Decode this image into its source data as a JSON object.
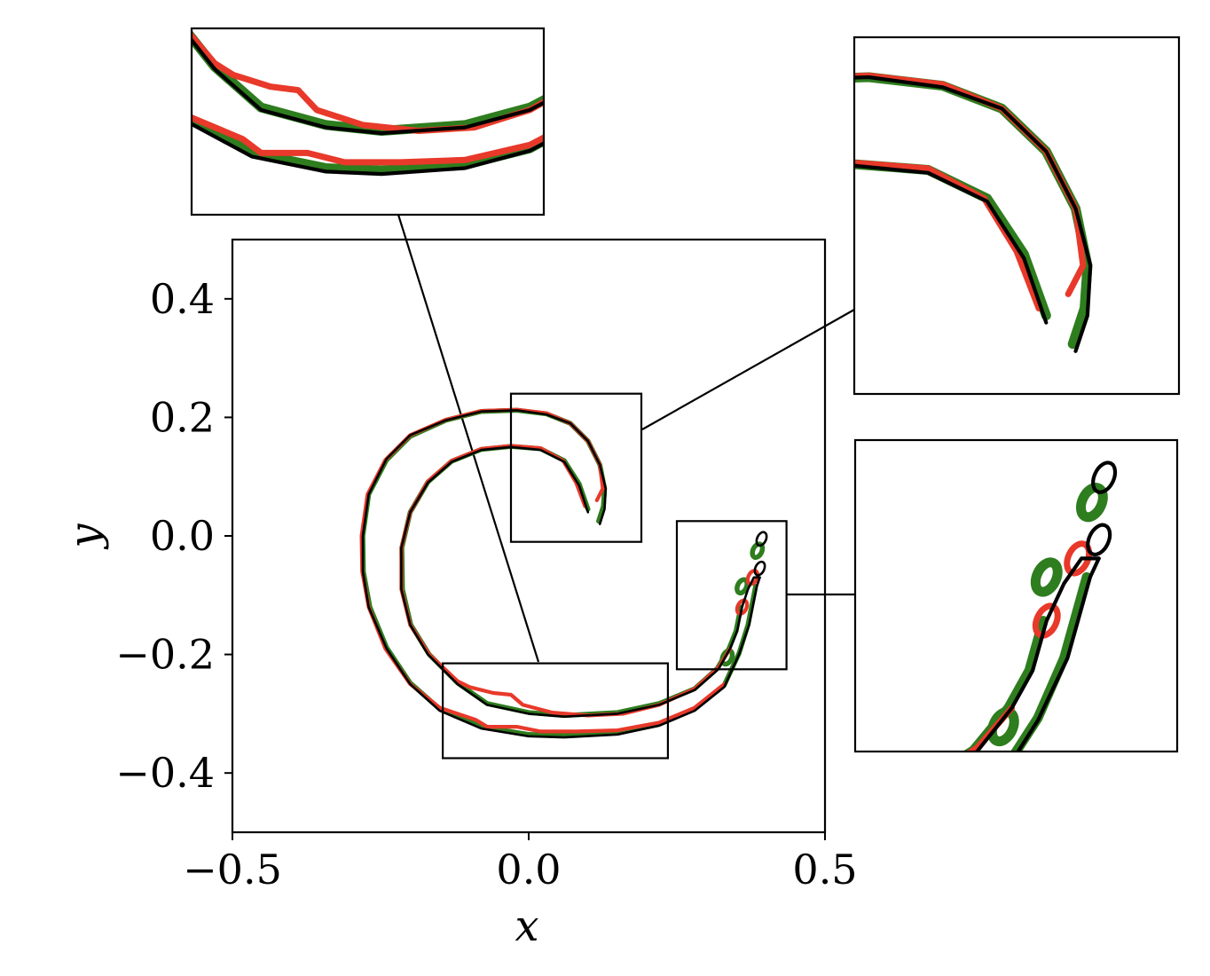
{
  "chart_data": {
    "type": "line",
    "title": "",
    "xlabel": "x",
    "ylabel": "y",
    "xlim": [
      -0.5,
      0.5
    ],
    "ylim": [
      -0.5,
      0.5
    ],
    "xticks": [
      -0.5,
      0.0,
      0.5
    ],
    "yticks": [
      -0.4,
      -0.2,
      0.0,
      0.2,
      0.4
    ],
    "xtick_labels": [
      "−0.5",
      "0.0",
      "0.5"
    ],
    "ytick_labels": [
      "−0.4",
      "−0.2",
      "0.0",
      "0.2",
      "0.4"
    ],
    "grid": false,
    "legend": "none",
    "series_colors": [
      "#000000",
      "#2e7d1e",
      "#e8392a"
    ],
    "series": [
      {
        "color": "#000000",
        "outer": [
          [
            0.12,
            0.02
          ],
          [
            0.128,
            0.045
          ],
          [
            0.13,
            0.08
          ],
          [
            0.12,
            0.12
          ],
          [
            0.1,
            0.16
          ],
          [
            0.07,
            0.19
          ],
          [
            0.03,
            0.205
          ],
          [
            -0.02,
            0.212
          ],
          [
            -0.08,
            0.21
          ],
          [
            -0.14,
            0.195
          ],
          [
            -0.2,
            0.17
          ],
          [
            -0.24,
            0.13
          ],
          [
            -0.27,
            0.07
          ],
          [
            -0.28,
            0.0
          ],
          [
            -0.28,
            -0.06
          ],
          [
            -0.27,
            -0.12
          ],
          [
            -0.24,
            -0.19
          ],
          [
            -0.2,
            -0.25
          ],
          [
            -0.15,
            -0.295
          ],
          [
            -0.08,
            -0.325
          ],
          [
            0.0,
            -0.338
          ],
          [
            0.06,
            -0.34
          ],
          [
            0.15,
            -0.335
          ],
          [
            0.22,
            -0.32
          ],
          [
            0.28,
            -0.295
          ],
          [
            0.33,
            -0.255
          ],
          [
            0.355,
            -0.2
          ],
          [
            0.372,
            -0.15
          ],
          [
            0.38,
            -0.11
          ],
          [
            0.385,
            -0.085
          ],
          [
            0.39,
            -0.07
          ]
        ],
        "inner": [
          [
            0.1,
            0.04
          ],
          [
            0.085,
            0.085
          ],
          [
            0.06,
            0.125
          ],
          [
            0.02,
            0.145
          ],
          [
            -0.03,
            0.15
          ],
          [
            -0.08,
            0.145
          ],
          [
            -0.13,
            0.125
          ],
          [
            -0.17,
            0.09
          ],
          [
            -0.2,
            0.04
          ],
          [
            -0.215,
            -0.02
          ],
          [
            -0.215,
            -0.09
          ],
          [
            -0.2,
            -0.15
          ],
          [
            -0.17,
            -0.2
          ],
          [
            -0.12,
            -0.25
          ],
          [
            -0.07,
            -0.285
          ],
          [
            0.0,
            -0.3
          ],
          [
            0.06,
            -0.305
          ],
          [
            0.15,
            -0.3
          ],
          [
            0.22,
            -0.285
          ],
          [
            0.28,
            -0.26
          ],
          [
            0.32,
            -0.225
          ],
          [
            0.34,
            -0.19
          ],
          [
            0.352,
            -0.16
          ],
          [
            0.36,
            -0.12
          ],
          [
            0.37,
            -0.09
          ],
          [
            0.38,
            -0.07
          ],
          [
            0.39,
            -0.07
          ]
        ],
        "blobs": [
          [
            0.39,
            -0.055
          ],
          [
            0.393,
            -0.005
          ]
        ]
      },
      {
        "color": "#2e7d1e",
        "outer": [
          [
            0.118,
            0.025
          ],
          [
            0.126,
            0.05
          ],
          [
            0.128,
            0.08
          ],
          [
            0.12,
            0.12
          ],
          [
            0.1,
            0.16
          ],
          [
            0.07,
            0.19
          ],
          [
            0.03,
            0.206
          ],
          [
            -0.02,
            0.212
          ],
          [
            -0.08,
            0.21
          ],
          [
            -0.14,
            0.195
          ],
          [
            -0.2,
            0.168
          ],
          [
            -0.24,
            0.128
          ],
          [
            -0.27,
            0.07
          ],
          [
            -0.28,
            0.0
          ],
          [
            -0.279,
            -0.06
          ],
          [
            -0.268,
            -0.12
          ],
          [
            -0.24,
            -0.188
          ],
          [
            -0.2,
            -0.248
          ],
          [
            -0.15,
            -0.292
          ],
          [
            -0.08,
            -0.322
          ],
          [
            0.0,
            -0.335
          ],
          [
            0.06,
            -0.337
          ],
          [
            0.15,
            -0.332
          ],
          [
            0.22,
            -0.318
          ],
          [
            0.28,
            -0.292
          ],
          [
            0.33,
            -0.252
          ],
          [
            0.355,
            -0.198
          ],
          [
            0.37,
            -0.15
          ],
          [
            0.378,
            -0.11
          ],
          [
            0.383,
            -0.085
          ]
        ],
        "inner": [
          [
            0.1,
            0.045
          ],
          [
            0.085,
            0.088
          ],
          [
            0.06,
            0.127
          ],
          [
            0.02,
            0.147
          ],
          [
            -0.03,
            0.151
          ],
          [
            -0.08,
            0.146
          ],
          [
            -0.13,
            0.126
          ],
          [
            -0.17,
            0.091
          ],
          [
            -0.2,
            0.04
          ],
          [
            -0.214,
            -0.02
          ],
          [
            -0.213,
            -0.09
          ],
          [
            -0.199,
            -0.15
          ],
          [
            -0.168,
            -0.2
          ],
          [
            -0.12,
            -0.248
          ],
          [
            -0.07,
            -0.283
          ],
          [
            0.0,
            -0.298
          ],
          [
            0.06,
            -0.303
          ],
          [
            0.15,
            -0.298
          ],
          [
            0.22,
            -0.283
          ],
          [
            0.28,
            -0.258
          ],
          [
            0.318,
            -0.224
          ],
          [
            0.338,
            -0.19
          ],
          [
            0.35,
            -0.16
          ],
          [
            0.358,
            -0.12
          ]
        ],
        "blobs": [
          [
            0.335,
            -0.205
          ],
          [
            0.36,
            -0.085
          ],
          [
            0.386,
            -0.025
          ]
        ]
      },
      {
        "color": "#e8392a",
        "outer": [
          [
            0.115,
            0.06
          ],
          [
            0.125,
            0.08
          ],
          [
            0.12,
            0.12
          ],
          [
            0.1,
            0.16
          ],
          [
            0.07,
            0.19
          ],
          [
            0.03,
            0.207
          ],
          [
            -0.02,
            0.213
          ],
          [
            -0.08,
            0.211
          ],
          [
            -0.14,
            0.196
          ],
          [
            -0.2,
            0.17
          ],
          [
            -0.242,
            0.128
          ],
          [
            -0.272,
            0.07
          ],
          [
            -0.282,
            0.0
          ],
          [
            -0.281,
            -0.06
          ],
          [
            -0.27,
            -0.12
          ],
          [
            -0.242,
            -0.19
          ],
          [
            -0.2,
            -0.25
          ],
          [
            -0.15,
            -0.29
          ],
          [
            -0.09,
            -0.31
          ],
          [
            -0.07,
            -0.322
          ],
          [
            -0.02,
            -0.322
          ],
          [
            0.02,
            -0.33
          ],
          [
            0.08,
            -0.33
          ],
          [
            0.15,
            -0.328
          ],
          [
            0.22,
            -0.315
          ],
          [
            0.28,
            -0.29
          ],
          [
            0.33,
            -0.25
          ]
        ],
        "inner": [
          [
            0.095,
            0.05
          ],
          [
            0.08,
            0.09
          ],
          [
            0.058,
            0.127
          ],
          [
            0.02,
            0.148
          ],
          [
            -0.03,
            0.152
          ],
          [
            -0.08,
            0.147
          ],
          [
            -0.13,
            0.127
          ],
          [
            -0.17,
            0.092
          ],
          [
            -0.2,
            0.04
          ],
          [
            -0.215,
            -0.02
          ],
          [
            -0.215,
            -0.09
          ],
          [
            -0.2,
            -0.15
          ],
          [
            -0.168,
            -0.2
          ],
          [
            -0.12,
            -0.245
          ],
          [
            -0.1,
            -0.255
          ],
          [
            -0.06,
            -0.265
          ],
          [
            -0.03,
            -0.268
          ],
          [
            -0.01,
            -0.285
          ],
          [
            0.04,
            -0.298
          ],
          [
            0.1,
            -0.303
          ],
          [
            0.16,
            -0.3
          ],
          [
            0.2,
            -0.29
          ],
          [
            0.22,
            -0.285
          ],
          [
            0.28,
            -0.258
          ],
          [
            0.32,
            -0.222
          ],
          [
            0.34,
            -0.19
          ]
        ],
        "blobs": [
          [
            0.36,
            -0.12
          ],
          [
            0.378,
            -0.07
          ]
        ]
      }
    ],
    "insets": [
      {
        "name": "bottom",
        "xlim": [
          -0.145,
          0.235
        ],
        "ylim": [
          -0.375,
          -0.215
        ]
      },
      {
        "name": "top-right",
        "xlim": [
          -0.03,
          0.19
        ],
        "ylim": [
          -0.01,
          0.24
        ]
      },
      {
        "name": "middle-right",
        "xlim": [
          0.25,
          0.435
        ],
        "ylim": [
          -0.225,
          0.025
        ]
      }
    ]
  }
}
